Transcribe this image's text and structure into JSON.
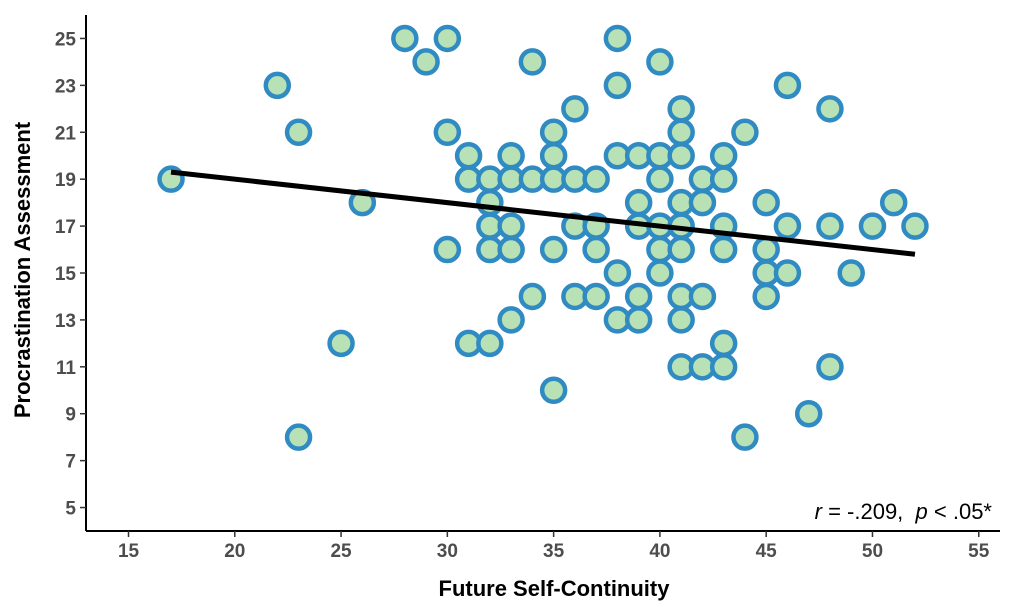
{
  "chart_data": {
    "type": "scatter",
    "xlabel": "Future Self-Continuity",
    "ylabel": "Procrastination Assessment",
    "xlim": [
      13,
      56
    ],
    "ylim": [
      4,
      26
    ],
    "x_ticks": [
      15,
      20,
      25,
      30,
      35,
      40,
      45,
      50,
      55
    ],
    "y_ticks": [
      5,
      7,
      9,
      11,
      13,
      15,
      17,
      19,
      21,
      23,
      25
    ],
    "grid": false,
    "annotation": {
      "r_symbol": "r",
      "r_value": " = -.209,  ",
      "p_symbol": "p",
      "p_value": " < .05*"
    },
    "colors": {
      "point_fill": "#b8e2b5",
      "point_stroke": "#2f8bc2",
      "line": "#000000"
    },
    "fit_line": {
      "x": [
        17,
        52
      ],
      "y": [
        19.3,
        15.8
      ]
    },
    "points": [
      [
        17,
        19
      ],
      [
        22,
        23
      ],
      [
        23,
        21
      ],
      [
        23,
        8
      ],
      [
        25,
        12
      ],
      [
        26,
        18
      ],
      [
        28,
        25
      ],
      [
        29,
        24
      ],
      [
        30,
        25
      ],
      [
        30,
        21
      ],
      [
        30,
        16
      ],
      [
        31,
        20
      ],
      [
        31,
        19
      ],
      [
        31,
        12
      ],
      [
        32,
        19
      ],
      [
        32,
        18
      ],
      [
        32,
        17
      ],
      [
        32,
        16
      ],
      [
        32,
        12
      ],
      [
        33,
        20
      ],
      [
        33,
        19
      ],
      [
        33,
        17
      ],
      [
        33,
        16
      ],
      [
        33,
        13
      ],
      [
        34,
        24
      ],
      [
        34,
        19
      ],
      [
        34,
        14
      ],
      [
        35,
        21
      ],
      [
        35,
        20
      ],
      [
        35,
        19
      ],
      [
        35,
        16
      ],
      [
        35,
        10
      ],
      [
        36,
        22
      ],
      [
        36,
        19
      ],
      [
        36,
        17
      ],
      [
        36,
        14
      ],
      [
        37,
        19
      ],
      [
        37,
        17
      ],
      [
        37,
        16
      ],
      [
        37,
        14
      ],
      [
        38,
        25
      ],
      [
        38,
        23
      ],
      [
        38,
        20
      ],
      [
        38,
        15
      ],
      [
        38,
        13
      ],
      [
        39,
        20
      ],
      [
        39,
        18
      ],
      [
        39,
        17
      ],
      [
        39,
        14
      ],
      [
        39,
        13
      ],
      [
        40,
        24
      ],
      [
        40,
        20
      ],
      [
        40,
        19
      ],
      [
        40,
        17
      ],
      [
        40,
        16
      ],
      [
        40,
        15
      ],
      [
        41,
        22
      ],
      [
        41,
        21
      ],
      [
        41,
        20
      ],
      [
        41,
        18
      ],
      [
        41,
        17
      ],
      [
        41,
        16
      ],
      [
        41,
        14
      ],
      [
        41,
        13
      ],
      [
        41,
        11
      ],
      [
        42,
        19
      ],
      [
        42,
        18
      ],
      [
        42,
        14
      ],
      [
        42,
        11
      ],
      [
        43,
        20
      ],
      [
        43,
        19
      ],
      [
        43,
        17
      ],
      [
        43,
        16
      ],
      [
        43,
        12
      ],
      [
        43,
        11
      ],
      [
        44,
        21
      ],
      [
        44,
        8
      ],
      [
        45,
        18
      ],
      [
        45,
        16
      ],
      [
        45,
        15
      ],
      [
        45,
        14
      ],
      [
        46,
        23
      ],
      [
        46,
        17
      ],
      [
        46,
        15
      ],
      [
        47,
        9
      ],
      [
        48,
        22
      ],
      [
        48,
        17
      ],
      [
        48,
        11
      ],
      [
        49,
        15
      ],
      [
        50,
        17
      ],
      [
        51,
        18
      ],
      [
        52,
        17
      ]
    ]
  }
}
